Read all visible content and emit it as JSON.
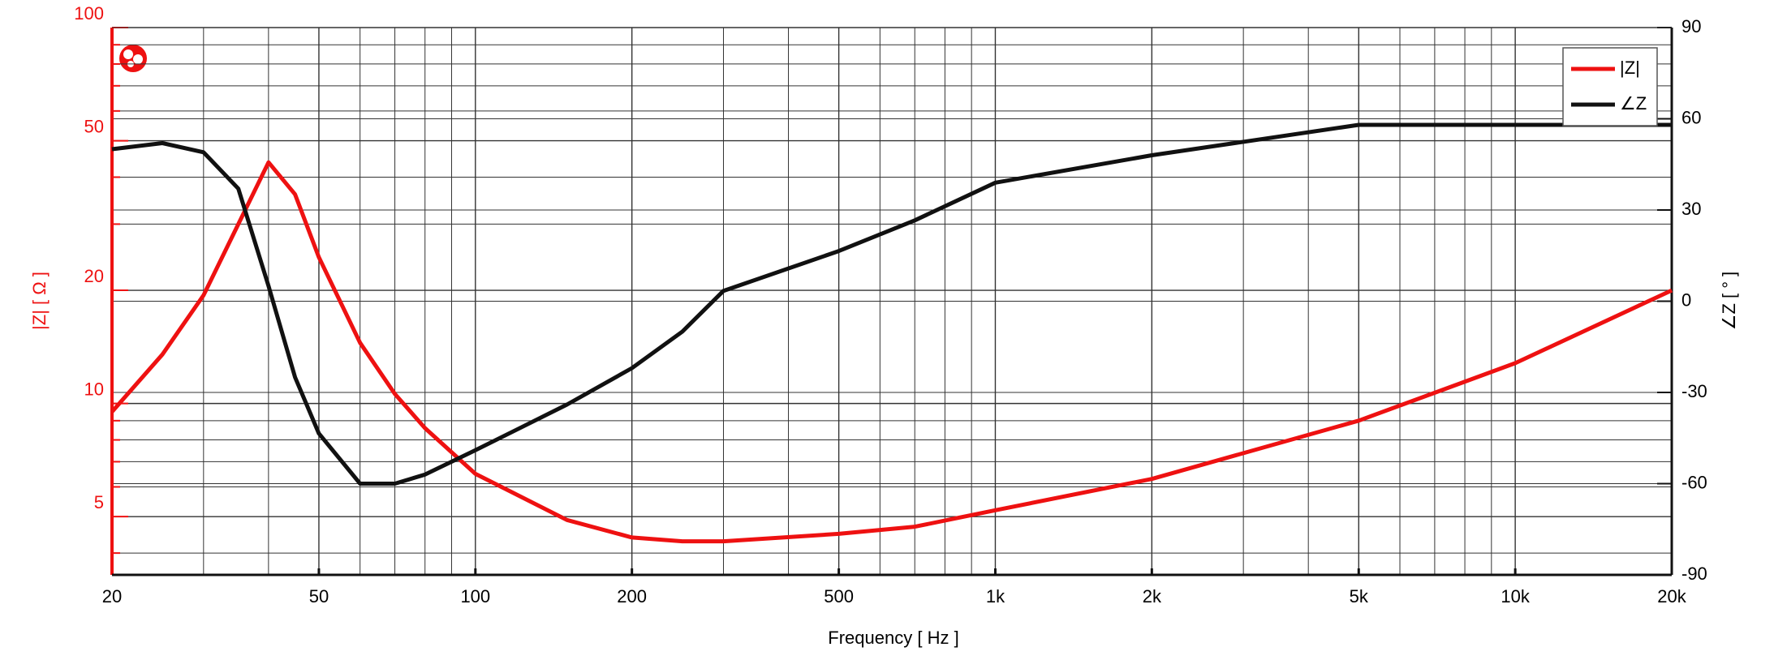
{
  "chart_data": {
    "type": "line",
    "xlabel": "Frequency [ Hz ]",
    "ylabel": "|Z| [ Ω ]",
    "y2label": "∠Z [ ° ]",
    "xlog": true,
    "ylog": true,
    "grid": true,
    "legend": "upper right",
    "xlim": [
      20,
      20000
    ],
    "xticks": [
      20,
      50,
      100,
      200,
      500,
      {
        "value": 1000,
        "label": "1k"
      },
      {
        "value": 2000,
        "label": "2k"
      },
      {
        "value": 5000,
        "label": "5k"
      },
      {
        "value": 10000,
        "label": "10k"
      },
      {
        "value": 20000,
        "label": "20k"
      }
    ],
    "xgrid": [
      30,
      40,
      60,
      70,
      80,
      90,
      300,
      400,
      600,
      700,
      800,
      900,
      3000,
      4000,
      6000,
      7000,
      8000,
      9000
    ],
    "ylim": [
      3.5,
      100
    ],
    "yticks": [
      5,
      10,
      20,
      50,
      100
    ],
    "ygrid": [
      4,
      6,
      7,
      8,
      9,
      30,
      40,
      60,
      70,
      80,
      90
    ],
    "y2lim": [
      -90,
      90
    ],
    "y2ticks": [
      -90,
      -60,
      -30,
      0,
      30,
      60,
      90
    ],
    "x": [
      20,
      25,
      30,
      35,
      40,
      45,
      50,
      60,
      70,
      80,
      100,
      150,
      200,
      250,
      300,
      500,
      700,
      1000,
      2000,
      5000,
      10000,
      20000
    ],
    "series": [
      {
        "name": "|Z|",
        "color": "#ee1111",
        "values": [
          9.5,
          13.5,
          19.4,
          30,
          43.8,
          36,
          24.5,
          14.5,
          10.6,
          8.6,
          6.5,
          4.9,
          4.4,
          4.3,
          4.3,
          4.5,
          4.7,
          5.2,
          6.3,
          9.0,
          12.8,
          20.0
        ]
      },
      {
        "name": "∠Z",
        "color": "#111111",
        "axis": "y2",
        "values": [
          50,
          52,
          49,
          37,
          5,
          -25,
          -43.5,
          -60,
          -60,
          -57,
          -49,
          -34,
          -22,
          -10,
          3.4,
          16.5,
          26.6,
          39,
          48,
          58,
          58,
          58
        ]
      }
    ]
  }
}
